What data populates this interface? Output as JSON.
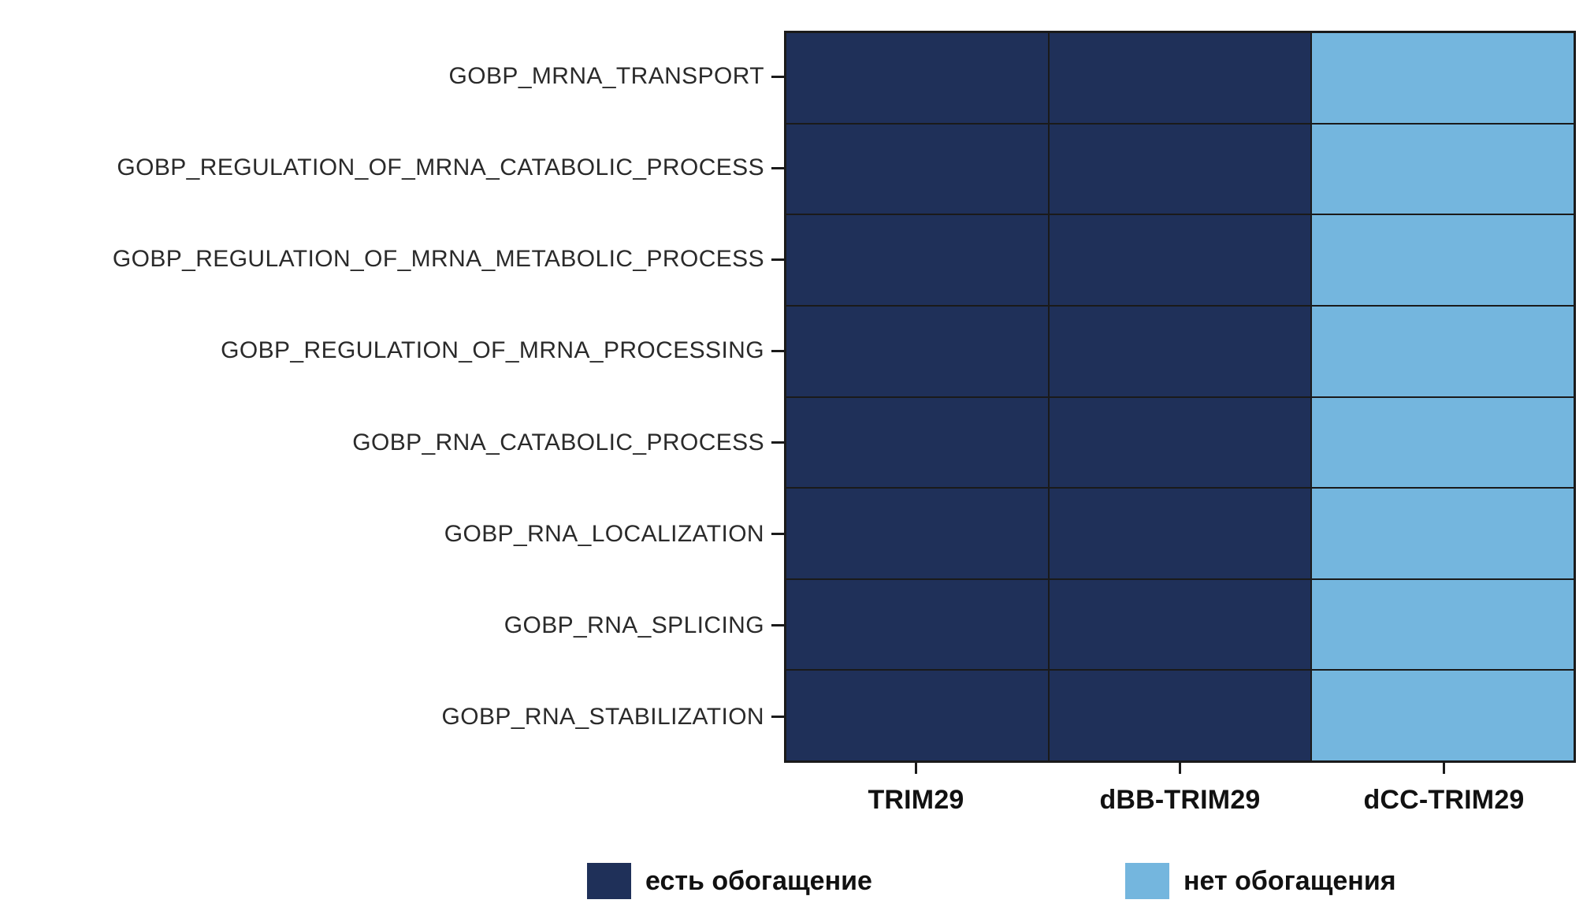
{
  "chart_data": {
    "type": "heatmap",
    "rows": [
      "GOBP_MRNA_TRANSPORT",
      "GOBP_REGULATION_OF_MRNA_CATABOLIC_PROCESS",
      "GOBP_REGULATION_OF_MRNA_METABOLIC_PROCESS",
      "GOBP_REGULATION_OF_MRNA_PROCESSING",
      "GOBP_RNA_CATABOLIC_PROCESS",
      "GOBP_RNA_LOCALIZATION",
      "GOBP_RNA_SPLICING",
      "GOBP_RNA_STABILIZATION"
    ],
    "columns": [
      "TRIM29",
      "dBB-TRIM29",
      "dCC-TRIM29"
    ],
    "matrix": [
      [
        1,
        1,
        0
      ],
      [
        1,
        1,
        0
      ],
      [
        1,
        1,
        0
      ],
      [
        1,
        1,
        0
      ],
      [
        1,
        1,
        0
      ],
      [
        1,
        1,
        0
      ],
      [
        1,
        1,
        0
      ],
      [
        1,
        1,
        0
      ]
    ],
    "value_meaning": {
      "1": "есть обогащение",
      "0": "нет обогащения"
    },
    "legend": [
      {
        "label": "есть обогащение",
        "value": 1,
        "color": "#1f3059"
      },
      {
        "label": "нет обогащения",
        "value": 0,
        "color": "#74b6de"
      }
    ],
    "colors": {
      "enriched": "#1f3059",
      "not_enriched": "#74b6de",
      "cell_border": "#1a1a1a",
      "background": "#ffffff"
    },
    "title": "",
    "xlabel": "",
    "ylabel": "",
    "grid": false,
    "legend_position": "bottom"
  }
}
